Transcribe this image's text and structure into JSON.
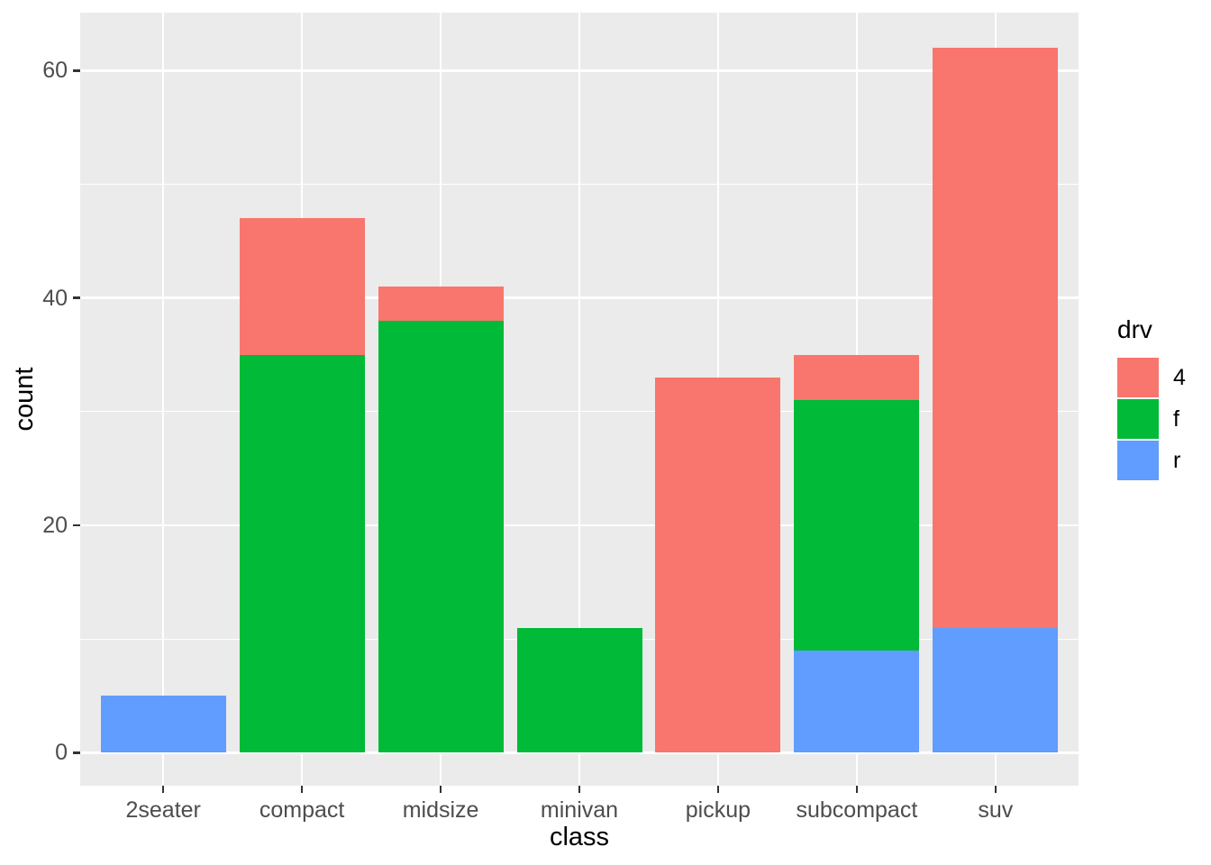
{
  "chart_data": {
    "type": "bar",
    "stacked": true,
    "xlabel": "class",
    "ylabel": "count",
    "categories": [
      "2seater",
      "compact",
      "midsize",
      "minivan",
      "pickup",
      "subcompact",
      "suv"
    ],
    "series": [
      {
        "name": "4",
        "color": "#F8766D",
        "values": [
          0,
          12,
          3,
          0,
          33,
          4,
          51
        ]
      },
      {
        "name": "f",
        "color": "#00BA38",
        "values": [
          0,
          35,
          38,
          11,
          0,
          22,
          0
        ]
      },
      {
        "name": "r",
        "color": "#619CFF",
        "values": [
          5,
          0,
          0,
          0,
          0,
          9,
          11
        ]
      }
    ],
    "stack_order_bottom_to_top": [
      "r",
      "f",
      "4"
    ],
    "totals": [
      5,
      47,
      41,
      11,
      33,
      35,
      62
    ],
    "y_ticks": [
      0,
      20,
      40,
      60
    ],
    "y_minor_ticks": [
      10,
      30,
      50
    ],
    "ylim": [
      -3.1,
      65.1
    ],
    "grid": true,
    "legend": {
      "title": "drv",
      "position": "right",
      "entries": [
        {
          "label": "4",
          "color": "#F8766D"
        },
        {
          "label": "f",
          "color": "#00BA38"
        },
        {
          "label": "r",
          "color": "#619CFF"
        }
      ]
    },
    "colors": {
      "panel_background": "#EBEBEB",
      "grid": "#FFFFFF",
      "tick_mark": "#333333",
      "tick_label": "#4D4D4D",
      "axis_title": "#000000",
      "figure_background": "#FFFFFF"
    }
  }
}
